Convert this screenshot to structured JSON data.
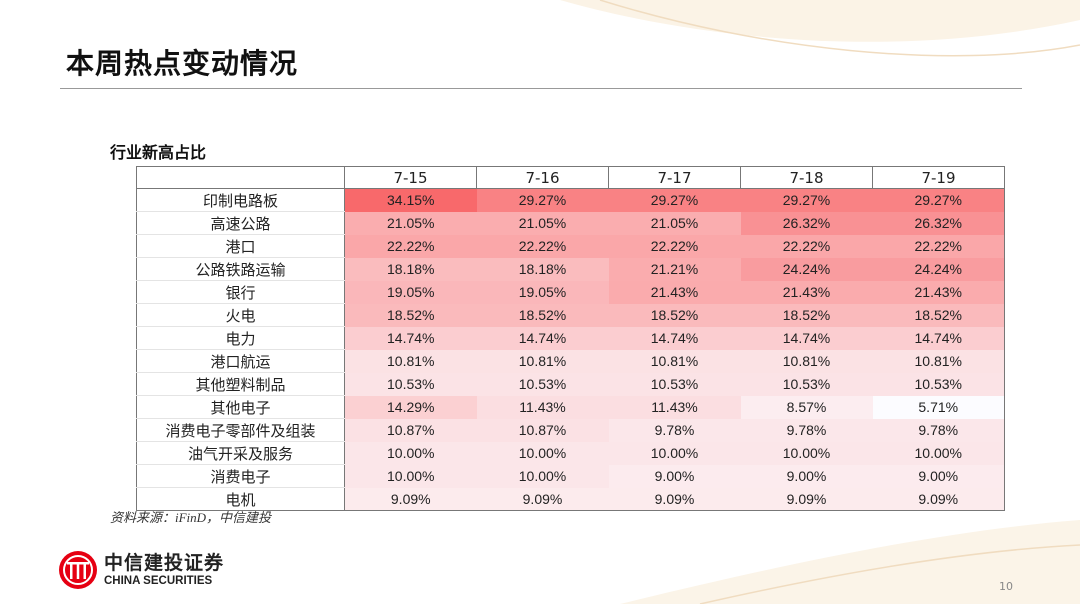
{
  "header": {
    "title": "本周热点变动情况"
  },
  "section": {
    "subtitle": "行业新高占比"
  },
  "table": {
    "columns": [
      "7-15",
      "7-16",
      "7-17",
      "7-18",
      "7-19"
    ],
    "rows": [
      {
        "label": "印制电路板",
        "values": [
          "34.15%",
          "29.27%",
          "29.27%",
          "29.27%",
          "29.27%"
        ]
      },
      {
        "label": "高速公路",
        "values": [
          "21.05%",
          "21.05%",
          "21.05%",
          "26.32%",
          "26.32%"
        ]
      },
      {
        "label": "港口",
        "values": [
          "22.22%",
          "22.22%",
          "22.22%",
          "22.22%",
          "22.22%"
        ]
      },
      {
        "label": "公路铁路运输",
        "values": [
          "18.18%",
          "18.18%",
          "21.21%",
          "24.24%",
          "24.24%"
        ]
      },
      {
        "label": "银行",
        "values": [
          "19.05%",
          "19.05%",
          "21.43%",
          "21.43%",
          "21.43%"
        ]
      },
      {
        "label": "火电",
        "values": [
          "18.52%",
          "18.52%",
          "18.52%",
          "18.52%",
          "18.52%"
        ]
      },
      {
        "label": "电力",
        "values": [
          "14.74%",
          "14.74%",
          "14.74%",
          "14.74%",
          "14.74%"
        ]
      },
      {
        "label": "港口航运",
        "values": [
          "10.81%",
          "10.81%",
          "10.81%",
          "10.81%",
          "10.81%"
        ]
      },
      {
        "label": "其他塑料制品",
        "values": [
          "10.53%",
          "10.53%",
          "10.53%",
          "10.53%",
          "10.53%"
        ]
      },
      {
        "label": "其他电子",
        "values": [
          "14.29%",
          "11.43%",
          "11.43%",
          "8.57%",
          "5.71%"
        ]
      },
      {
        "label": "消费电子零部件及组装",
        "values": [
          "10.87%",
          "10.87%",
          "9.78%",
          "9.78%",
          "9.78%"
        ]
      },
      {
        "label": "油气开采及服务",
        "values": [
          "10.00%",
          "10.00%",
          "10.00%",
          "10.00%",
          "10.00%"
        ]
      },
      {
        "label": "消费电子",
        "values": [
          "10.00%",
          "10.00%",
          "9.00%",
          "9.00%",
          "9.00%"
        ]
      },
      {
        "label": "电机",
        "values": [
          "9.09%",
          "9.09%",
          "9.09%",
          "9.09%",
          "9.09%"
        ]
      }
    ],
    "heat_colors": {
      "high": "#f8696b",
      "low": "#fcfcff"
    }
  },
  "footer": {
    "source": "资料来源：iFinD，中信建投",
    "logo_cn": "中信建投证券",
    "logo_en": "CHINA SECURITIES",
    "page_number": "10",
    "brand_color": "#e60012"
  }
}
